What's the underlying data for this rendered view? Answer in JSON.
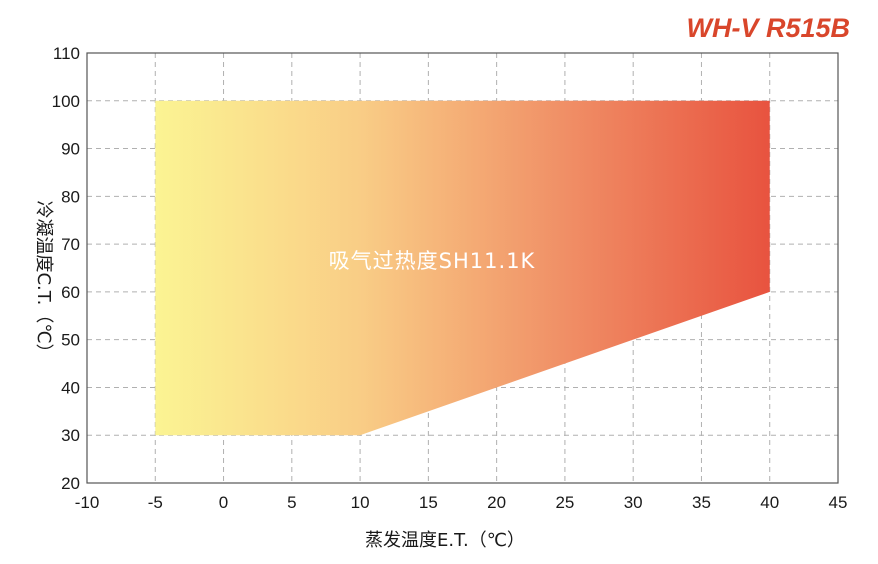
{
  "chart_data": {
    "type": "area",
    "title": "WH-V R515B",
    "xlabel": "蒸发温度E.T.（℃）",
    "ylabel": "冷凝温度C.T.（℃）",
    "xlim": [
      -10,
      45
    ],
    "ylim": [
      20,
      110
    ],
    "xticks": [
      -10,
      -5,
      0,
      5,
      10,
      15,
      20,
      25,
      30,
      35,
      40,
      45
    ],
    "yticks": [
      20,
      30,
      40,
      50,
      60,
      70,
      80,
      90,
      100,
      110
    ],
    "grid": true,
    "envelope": {
      "x": [
        -5,
        40,
        40,
        10,
        -5
      ],
      "y": [
        100,
        100,
        60,
        30,
        30
      ]
    },
    "gradient_colors": [
      "#fbf493",
      "#f9cd86",
      "#f08f66",
      "#e8533f"
    ],
    "annotation": "吸气过热度SH11.1K"
  }
}
